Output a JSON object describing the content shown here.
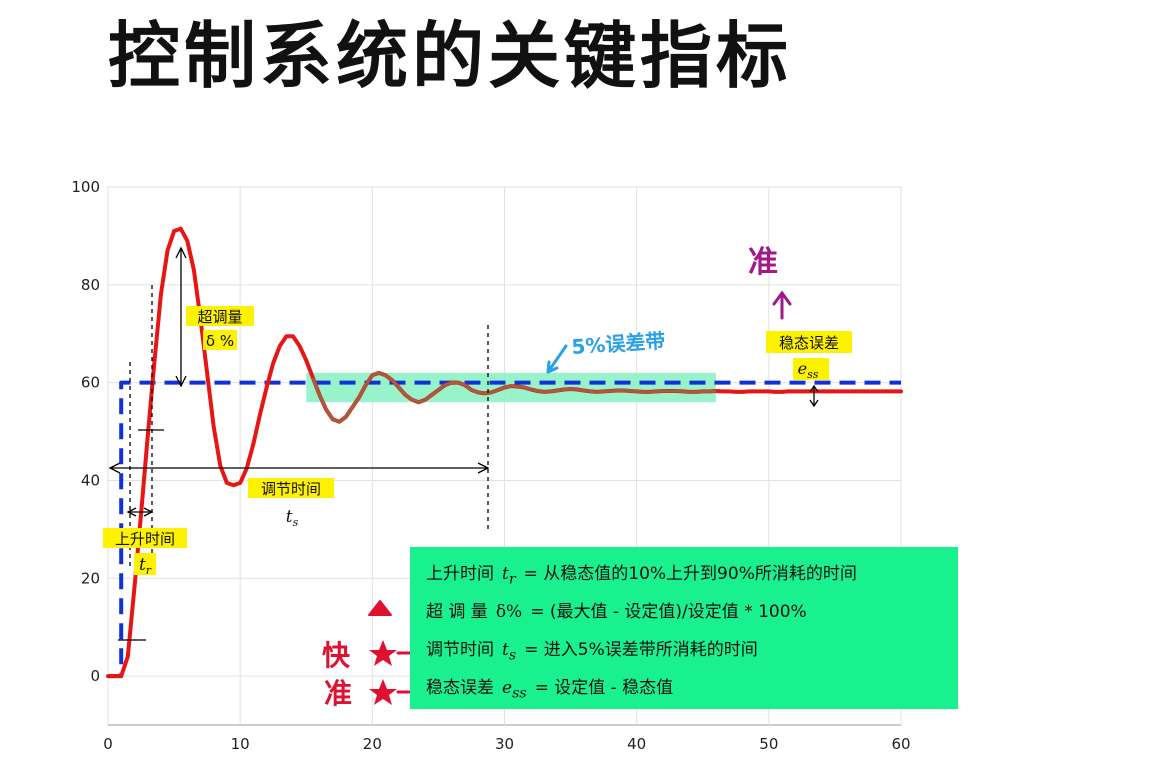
{
  "title": "控制系统的关键指标",
  "chart_data": {
    "type": "line",
    "xlim": [
      0,
      60
    ],
    "ylim": [
      -10,
      100
    ],
    "xticks": [
      0,
      10,
      20,
      30,
      40,
      50,
      60
    ],
    "yticks": [
      0,
      20,
      40,
      60,
      80,
      100
    ],
    "grid": true,
    "series": [
      {
        "style": "dashed",
        "color": "#1030d8",
        "x": [
          0,
          1,
          1,
          60
        ],
        "y": [
          0,
          0,
          60,
          60
        ]
      },
      {
        "style": "solid",
        "color": "#e81515",
        "x": [
          0,
          1,
          1.5,
          2,
          2.5,
          3,
          3.5,
          4,
          4.5,
          5,
          5.5,
          6,
          6.5,
          7,
          7.5,
          8,
          8.5,
          9,
          9.5,
          10,
          10.5,
          11,
          11.5,
          12,
          12.5,
          13,
          13.5,
          14,
          14.5,
          15,
          15.5,
          16,
          16.5,
          17,
          17.5,
          18,
          18.5,
          19,
          19.5,
          20,
          20.5,
          21,
          21.5,
          22,
          22.5,
          23,
          23.5,
          24,
          24.5,
          25,
          25.5,
          26,
          26.5,
          27,
          27.5,
          28,
          28.5,
          29,
          29.5,
          30,
          30.5,
          31,
          31.5,
          32,
          32.5,
          33,
          33.5,
          34,
          34.5,
          35,
          35.5,
          36,
          36.5,
          37,
          37.5,
          38,
          38.5,
          39,
          39.5,
          40,
          40.5,
          41,
          41.5,
          42,
          42.5,
          43,
          43.5,
          44,
          44.5,
          45,
          45.5,
          46,
          46.5,
          47,
          47.5,
          48,
          48.5,
          49,
          49.5,
          50,
          50.5,
          51,
          51.5,
          52,
          52.5,
          53,
          53.5,
          54,
          54.5,
          55,
          55.5,
          56,
          56.5,
          57,
          57.5,
          58,
          58.5,
          59,
          59.5,
          60
        ],
        "y": [
          0,
          0,
          4,
          18,
          33,
          49,
          64,
          78,
          87,
          91,
          91.5,
          89,
          83,
          73,
          62,
          51,
          43,
          39.5,
          39,
          39.5,
          42.5,
          47.5,
          53.5,
          59,
          64,
          67.5,
          69.5,
          69.5,
          67.5,
          64.5,
          61,
          57.5,
          54.5,
          52.5,
          52,
          53,
          55,
          57,
          59.5,
          61.5,
          62,
          61.5,
          60.5,
          59,
          57.5,
          56.5,
          56,
          56.5,
          57.5,
          58.5,
          59.5,
          60,
          60,
          59.5,
          58.5,
          58,
          57.8,
          58,
          58.5,
          59,
          59.3,
          59.2,
          59,
          58.6,
          58.3,
          58.1,
          58.2,
          58.4,
          58.6,
          58.7,
          58.6,
          58.4,
          58.2,
          58.1,
          58.2,
          58.3,
          58.4,
          58.4,
          58.3,
          58.2,
          58.1,
          58.1,
          58.2,
          58.3,
          58.3,
          58.3,
          58.2,
          58.1,
          58.1,
          58.2,
          58.2,
          58.3,
          58.2,
          58.2,
          58.1,
          58.1,
          58.2,
          58.2,
          58.2,
          58.2,
          58.1,
          58.1,
          58.2,
          58.2,
          58.2,
          58.2,
          58.2,
          58.2,
          58.2,
          58.2,
          58.2,
          58.2,
          58.2,
          58.2,
          58.2,
          58.2,
          58.2,
          58.2,
          58.2,
          58.2
        ]
      }
    ],
    "error_band": {
      "x": [
        15,
        46
      ],
      "y": [
        56,
        62
      ],
      "color": "#8ef2c4"
    },
    "annotations": [
      {
        "label": "超调量",
        "sub": "δ %"
      },
      {
        "label": "调节时间",
        "sub": "t_s"
      },
      {
        "label": "上升时间",
        "sub": "t_r"
      },
      {
        "label": "稳态误差",
        "sub": "e_ss"
      },
      {
        "label": "5%误差带"
      },
      {
        "label": "准"
      }
    ]
  },
  "notes": [
    {
      "term": "上升时间",
      "sym": "tr",
      "text": "=  从稳态值的10%上升到90%所消耗的时间"
    },
    {
      "term": "超 调 量",
      "sym": "δ%",
      "text": "=  (最大值 - 设定值)/设定值 * 100%"
    },
    {
      "term": "调节时间",
      "sym": "ts",
      "text": "=  进入5%误差带所消耗的时间"
    },
    {
      "term": "稳态误差",
      "sym": "ess",
      "text": "=  设定值 - 稳态值"
    }
  ],
  "hand_marks": {
    "fast": "快",
    "accurate": "准"
  },
  "colors": {
    "setpoint": "#1030d8",
    "response": "#e81515",
    "highlight": "#fff200",
    "note_bg": "#19f08e",
    "hand_red": "#e01030",
    "hand_purple": "#a0188c",
    "hand_blue": "#2aa0e6"
  }
}
